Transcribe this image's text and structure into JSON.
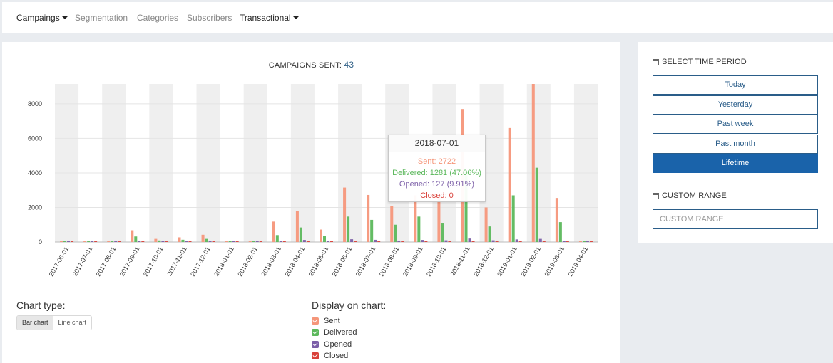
{
  "nav": {
    "items": [
      {
        "label": "Campaings",
        "dropdown": true
      },
      {
        "label": "Segmentation",
        "dropdown": false
      },
      {
        "label": "Categories",
        "dropdown": false
      },
      {
        "label": "Subscribers",
        "dropdown": false
      },
      {
        "label": "Transactional",
        "dropdown": true
      }
    ]
  },
  "main": {
    "title_label": "CAMPAIGNS SENT:",
    "title_count": "43",
    "tooltip": {
      "date": "2018-07-01",
      "sent": "Sent: 2722",
      "delivered": "Delivered: 1281 (47.06%)",
      "opened": "Opened: 127 (9.91%)",
      "closed": "Closed: 0"
    },
    "chart_type_label": "Chart type:",
    "chart_type_options": [
      "Bar chart",
      "Line chart"
    ],
    "chart_type_selected": "Bar chart",
    "display_label": "Display on chart:",
    "display_options": [
      {
        "label": "Sent",
        "checked": true,
        "color": "#f5967a"
      },
      {
        "label": "Delivered",
        "checked": true,
        "color": "#5cb85c"
      },
      {
        "label": "Opened",
        "checked": true,
        "color": "#7b5ea7"
      },
      {
        "label": "Closed",
        "checked": true,
        "color": "#d9413a"
      }
    ]
  },
  "side": {
    "select_period_label": "SELECT TIME PERIOD",
    "periods": [
      "Today",
      "Yesterday",
      "Past week",
      "Past month",
      "Lifetime"
    ],
    "active_period": "Lifetime",
    "custom_range_label": "CUSTOM RANGE",
    "custom_range_placeholder": "CUSTOM RANGE"
  },
  "chart_data": {
    "type": "bar",
    "title": "CAMPAIGNS SENT: 43",
    "categories": [
      "2017-06-01",
      "2017-07-01",
      "2017-08-01",
      "2017-09-01",
      "2017-10-01",
      "2017-11-01",
      "2017-12-01",
      "2018-01-01",
      "2018-02-01",
      "2018-03-01",
      "2018-04-01",
      "2018-05-01",
      "2018-06-01",
      "2018-07-01",
      "2018-08-01",
      "2018-09-01",
      "2018-10-01",
      "2018-11-01",
      "2018-12-01",
      "2019-01-01",
      "2019-02-01",
      "2019-03-01",
      "2019-04-01"
    ],
    "series": [
      {
        "name": "Sent",
        "color": "#f5967a",
        "values": [
          0,
          0,
          0,
          680,
          180,
          270,
          420,
          0,
          0,
          1180,
          1800,
          720,
          3150,
          2722,
          2100,
          2700,
          2600,
          7700,
          2000,
          6600,
          9150,
          2550,
          0
        ]
      },
      {
        "name": "Delivered",
        "color": "#5cb85c",
        "values": [
          0,
          0,
          0,
          320,
          90,
          130,
          180,
          0,
          0,
          400,
          840,
          330,
          1470,
          1281,
          1000,
          1470,
          1070,
          4100,
          900,
          2700,
          4300,
          1150,
          0
        ]
      },
      {
        "name": "Opened",
        "color": "#7b5ea7",
        "values": [
          0,
          0,
          0,
          60,
          20,
          30,
          40,
          0,
          0,
          50,
          120,
          40,
          160,
          127,
          80,
          120,
          100,
          200,
          100,
          150,
          180,
          60,
          0
        ]
      },
      {
        "name": "Closed",
        "color": "#d9413a",
        "values": [
          0,
          0,
          0,
          0,
          0,
          0,
          0,
          0,
          0,
          0,
          0,
          0,
          0,
          0,
          0,
          0,
          0,
          0,
          0,
          0,
          0,
          0,
          0
        ]
      }
    ],
    "yticks": [
      0,
      2000,
      4000,
      6000,
      8000
    ],
    "ylim": [
      0,
      9150
    ],
    "grid": true,
    "legend": "none"
  }
}
